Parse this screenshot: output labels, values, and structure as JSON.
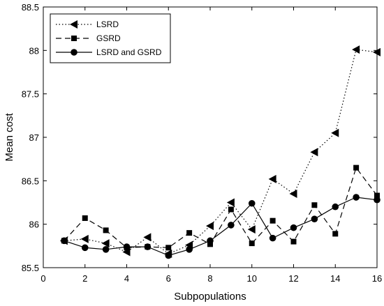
{
  "chart_data": {
    "type": "line",
    "title": "",
    "xlabel": "Subpopulations",
    "ylabel": "Mean cost",
    "xlim": [
      0,
      16
    ],
    "ylim": [
      85.5,
      88.5
    ],
    "xticks": [
      0,
      2,
      4,
      6,
      8,
      10,
      12,
      14,
      16
    ],
    "yticks": [
      85.5,
      86,
      86.5,
      87,
      87.5,
      88,
      88.5
    ],
    "xtick_labels": [
      "0",
      "2",
      "4",
      "6",
      "8",
      "10",
      "12",
      "14",
      "16"
    ],
    "ytick_labels": [
      "85.5",
      "86",
      "86.5",
      "87",
      "87.5",
      "88",
      "88.5"
    ],
    "grid": false,
    "legend_position": "top-left",
    "x": [
      1,
      2,
      3,
      4,
      5,
      6,
      7,
      8,
      9,
      10,
      11,
      12,
      13,
      14,
      15,
      16
    ],
    "series": [
      {
        "name": "LSRD",
        "line_style": "dotted",
        "marker": "left-triangle",
        "values": [
          85.81,
          85.83,
          85.78,
          85.68,
          85.85,
          85.66,
          85.76,
          85.98,
          86.25,
          85.94,
          86.52,
          86.35,
          86.83,
          87.05,
          88.01,
          87.98
        ]
      },
      {
        "name": "GSRD",
        "line_style": "dashed",
        "marker": "square",
        "values": [
          85.81,
          86.07,
          85.93,
          85.73,
          85.74,
          85.73,
          85.9,
          85.77,
          86.17,
          85.78,
          86.04,
          85.8,
          86.22,
          85.89,
          86.65,
          86.33
        ]
      },
      {
        "name": "LSRD and GSRD",
        "line_style": "solid",
        "marker": "circle",
        "values": [
          85.81,
          85.73,
          85.71,
          85.74,
          85.74,
          85.64,
          85.71,
          85.81,
          85.99,
          86.24,
          85.84,
          85.96,
          86.06,
          86.2,
          86.31,
          86.28
        ]
      }
    ],
    "line_color": "#000000"
  }
}
